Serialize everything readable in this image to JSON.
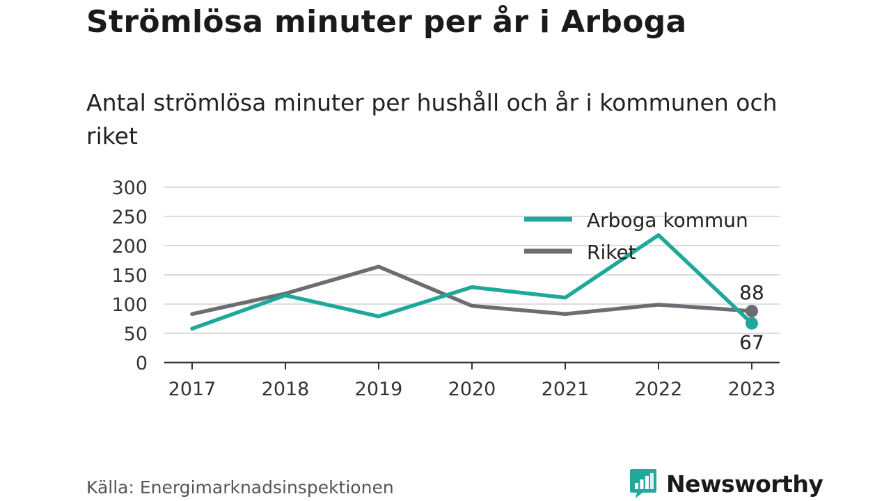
{
  "title": "Strömlösa minuter per år i Arboga",
  "subtitle": "Antal strömlösa minuter per hushåll och år i kommunen och riket",
  "source": "Källa: Energimarknadsinspektionen",
  "brand": {
    "name": "Newsworthy",
    "logo_icon": "bar-chart-speech-bubble-icon",
    "color": "#23a89d"
  },
  "chart_data": {
    "type": "line",
    "x": [
      "2017",
      "2018",
      "2019",
      "2020",
      "2021",
      "2022",
      "2023"
    ],
    "ylim": [
      0,
      300
    ],
    "yticks": [
      "0",
      "50",
      "100",
      "150",
      "200",
      "250",
      "300"
    ],
    "grid": true,
    "legend_position": "top-right",
    "series": [
      {
        "name": "Arboga kommun",
        "color": "#1fa89a",
        "values": [
          58,
          115,
          79,
          129,
          111,
          218,
          67
        ]
      },
      {
        "name": "Riket",
        "color": "#6e6c73",
        "values": [
          83,
          118,
          164,
          97,
          83,
          99,
          88
        ]
      }
    ],
    "end_labels": [
      "67",
      "88"
    ]
  }
}
